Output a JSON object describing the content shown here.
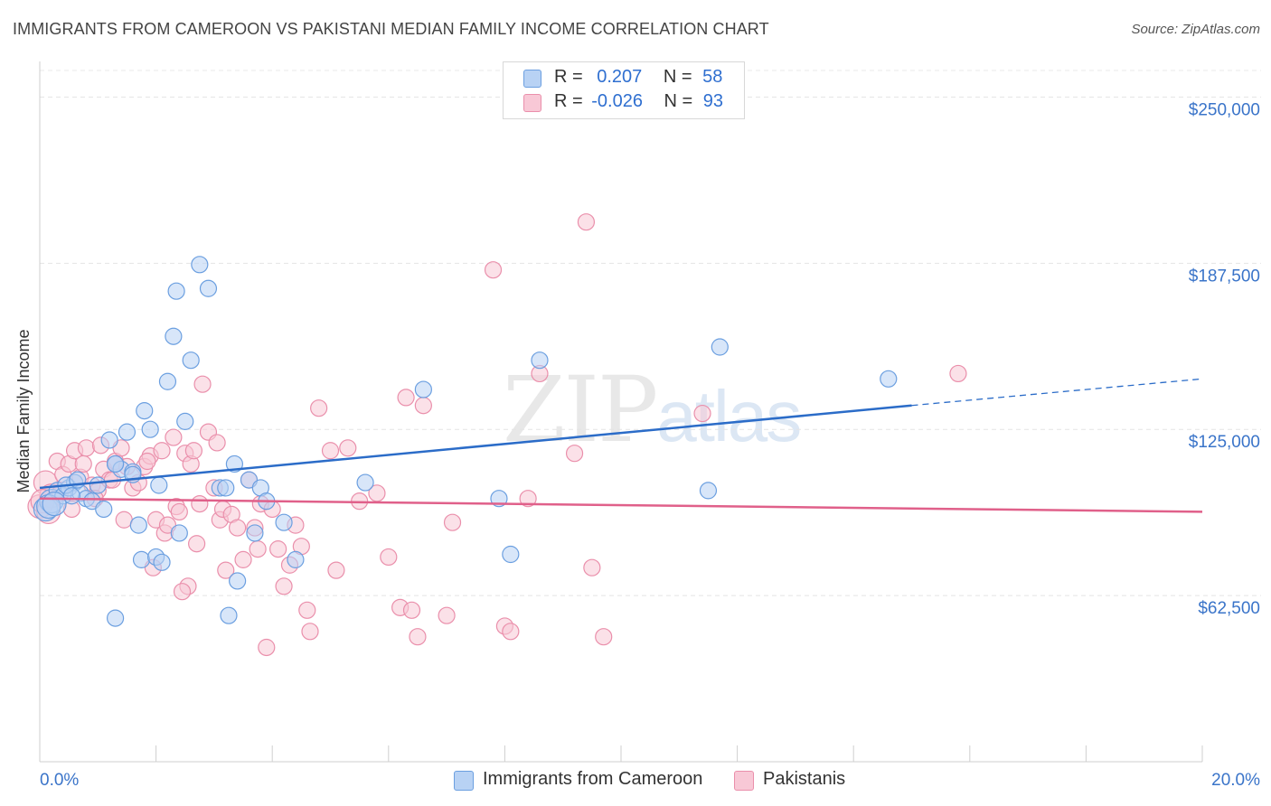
{
  "header": {
    "title": "IMMIGRANTS FROM CAMEROON VS PAKISTANI MEDIAN FAMILY INCOME CORRELATION CHART",
    "source": "Source: ZipAtlas.com"
  },
  "legend": {
    "rows": [
      {
        "r_label": "R =",
        "r_value": "0.207",
        "n_label": "N =",
        "n_value": "58",
        "color": "#a9c8f0"
      },
      {
        "r_label": "R =",
        "r_value": "-0.026",
        "n_label": "N =",
        "n_value": "93",
        "color": "#f5b8cb"
      }
    ]
  },
  "watermark": {
    "zip": "ZIP",
    "atlas": "atlas"
  },
  "chart_data": {
    "type": "scatter",
    "ylabel": "Median Family Income",
    "xlim": [
      0,
      20
    ],
    "ylim": [
      0,
      260000
    ],
    "x_tick_labels": [
      "0.0%",
      "20.0%"
    ],
    "y_ticks": [
      62500,
      125000,
      187500,
      250000
    ],
    "y_tick_labels": [
      "$62,500",
      "$125,000",
      "$187,500",
      "$250,000"
    ],
    "grid": true,
    "series": [
      {
        "name": "Immigrants from Cameroon",
        "color": "#6b9fe0",
        "fill": "#b8d2f4",
        "trend": {
          "x0": 0,
          "y0": 103000,
          "x1": 15,
          "y1": 134000,
          "dash_x1": 20,
          "dash_y1": 144000,
          "color": "#2b6cc8"
        },
        "points": [
          [
            0.1,
            95000
          ],
          [
            0.2,
            98000
          ],
          [
            0.3,
            102000
          ],
          [
            0.4,
            100000
          ],
          [
            0.5,
            103000
          ],
          [
            0.6,
            105000
          ],
          [
            0.7,
            101000
          ],
          [
            0.8,
            99000
          ],
          [
            0.9,
            98000
          ],
          [
            1.0,
            104000
          ],
          [
            1.1,
            95000
          ],
          [
            1.2,
            121000
          ],
          [
            1.3,
            112000
          ],
          [
            1.4,
            110000
          ],
          [
            1.5,
            124000
          ],
          [
            1.6,
            109000
          ],
          [
            1.7,
            89000
          ],
          [
            1.75,
            76000
          ],
          [
            1.8,
            132000
          ],
          [
            1.9,
            125000
          ],
          [
            2.0,
            77000
          ],
          [
            2.05,
            104000
          ],
          [
            2.1,
            75000
          ],
          [
            2.2,
            143000
          ],
          [
            2.3,
            160000
          ],
          [
            2.35,
            177000
          ],
          [
            2.4,
            86000
          ],
          [
            2.5,
            128000
          ],
          [
            2.6,
            151000
          ],
          [
            2.75,
            187000
          ],
          [
            2.9,
            178000
          ],
          [
            3.1,
            103000
          ],
          [
            3.25,
            55000
          ],
          [
            3.35,
            112000
          ],
          [
            3.4,
            68000
          ],
          [
            3.6,
            106000
          ],
          [
            3.7,
            86000
          ],
          [
            3.8,
            103000
          ],
          [
            3.9,
            98000
          ],
          [
            4.2,
            90000
          ],
          [
            4.4,
            76000
          ],
          [
            5.6,
            105000
          ],
          [
            6.6,
            140000
          ],
          [
            7.9,
            99000
          ],
          [
            8.1,
            78000
          ],
          [
            8.6,
            151000
          ],
          [
            11.5,
            102000
          ],
          [
            11.7,
            156000
          ],
          [
            14.6,
            144000
          ],
          [
            0.15,
            96000
          ],
          [
            0.25,
            97000
          ],
          [
            0.45,
            104000
          ],
          [
            0.55,
            100000
          ],
          [
            0.65,
            106000
          ],
          [
            1.3,
            112000
          ],
          [
            1.6,
            108000
          ],
          [
            3.2,
            103000
          ],
          [
            1.3,
            54000
          ]
        ]
      },
      {
        "name": "Pakistanis",
        "color": "#ea8fab",
        "fill": "#f8c8d6",
        "trend": {
          "x0": 0,
          "y0": 99000,
          "x1": 20,
          "y1": 94000,
          "color": "#e0608a"
        },
        "points": [
          [
            0.0,
            96000
          ],
          [
            0.1,
            105000
          ],
          [
            0.2,
            100000
          ],
          [
            0.3,
            113000
          ],
          [
            0.4,
            108000
          ],
          [
            0.5,
            112000
          ],
          [
            0.6,
            117000
          ],
          [
            0.7,
            107000
          ],
          [
            0.8,
            118000
          ],
          [
            0.9,
            104000
          ],
          [
            1.0,
            102000
          ],
          [
            1.1,
            110000
          ],
          [
            1.2,
            106000
          ],
          [
            1.3,
            113000
          ],
          [
            1.4,
            118000
          ],
          [
            1.5,
            111000
          ],
          [
            1.6,
            103000
          ],
          [
            1.7,
            105000
          ],
          [
            1.8,
            111000
          ],
          [
            1.9,
            115000
          ],
          [
            2.0,
            91000
          ],
          [
            2.1,
            117000
          ],
          [
            2.15,
            86000
          ],
          [
            2.2,
            89000
          ],
          [
            2.3,
            122000
          ],
          [
            2.35,
            96000
          ],
          [
            2.4,
            94000
          ],
          [
            2.5,
            116000
          ],
          [
            2.55,
            66000
          ],
          [
            2.6,
            112000
          ],
          [
            2.7,
            82000
          ],
          [
            2.75,
            97000
          ],
          [
            2.8,
            142000
          ],
          [
            2.9,
            124000
          ],
          [
            3.0,
            103000
          ],
          [
            3.05,
            120000
          ],
          [
            3.1,
            91000
          ],
          [
            3.15,
            95000
          ],
          [
            3.2,
            72000
          ],
          [
            3.3,
            93000
          ],
          [
            3.4,
            88000
          ],
          [
            3.5,
            76000
          ],
          [
            3.6,
            106000
          ],
          [
            3.7,
            88000
          ],
          [
            3.75,
            80000
          ],
          [
            3.8,
            97000
          ],
          [
            3.9,
            43000
          ],
          [
            4.0,
            95000
          ],
          [
            4.1,
            80000
          ],
          [
            4.2,
            66000
          ],
          [
            4.3,
            74000
          ],
          [
            4.4,
            89000
          ],
          [
            4.5,
            81000
          ],
          [
            4.6,
            57000
          ],
          [
            4.65,
            49000
          ],
          [
            4.8,
            133000
          ],
          [
            5.0,
            117000
          ],
          [
            5.1,
            72000
          ],
          [
            5.3,
            118000
          ],
          [
            5.5,
            98000
          ],
          [
            5.8,
            101000
          ],
          [
            6.0,
            77000
          ],
          [
            6.2,
            58000
          ],
          [
            6.3,
            137000
          ],
          [
            6.4,
            57000
          ],
          [
            6.5,
            47000
          ],
          [
            6.6,
            134000
          ],
          [
            7.0,
            55000
          ],
          [
            7.1,
            90000
          ],
          [
            7.8,
            185000
          ],
          [
            8.0,
            51000
          ],
          [
            8.1,
            49000
          ],
          [
            8.4,
            99000
          ],
          [
            8.6,
            146000
          ],
          [
            9.2,
            116000
          ],
          [
            9.4,
            203000
          ],
          [
            9.5,
            73000
          ],
          [
            9.7,
            47000
          ],
          [
            11.4,
            131000
          ],
          [
            15.8,
            146000
          ],
          [
            0.05,
            98000
          ],
          [
            0.15,
            94000
          ],
          [
            0.35,
            101000
          ],
          [
            0.55,
            95000
          ],
          [
            0.75,
            112000
          ],
          [
            1.25,
            106000
          ],
          [
            1.45,
            91000
          ],
          [
            1.95,
            73000
          ],
          [
            2.45,
            64000
          ],
          [
            2.65,
            117000
          ],
          [
            1.85,
            113000
          ],
          [
            1.05,
            119000
          ],
          [
            0.95,
            99000
          ]
        ]
      }
    ]
  }
}
